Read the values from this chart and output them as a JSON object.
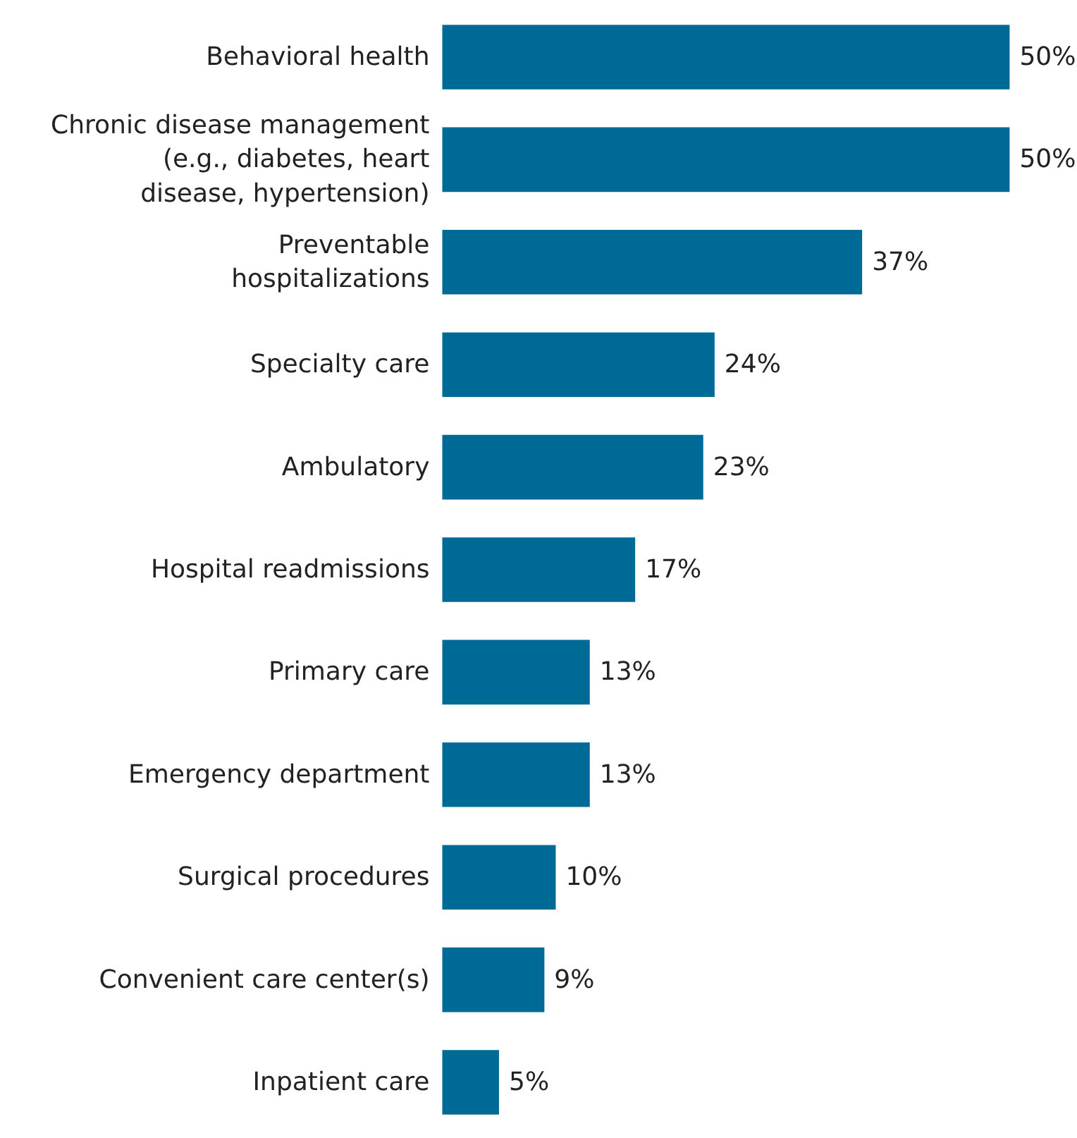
{
  "chart_data": {
    "type": "bar",
    "orientation": "horizontal",
    "categories": [
      "Behavioral health",
      "Chronic disease management (e.g., diabetes, heart disease, hypertension)",
      "Preventable hospitalizations",
      "Specialty care",
      "Ambulatory",
      "Hospital readmissions",
      "Primary care",
      "Emergency department",
      "Surgical procedures",
      "Convenient care center(s)",
      "Inpatient care"
    ],
    "values": [
      50,
      50,
      37,
      24,
      23,
      17,
      13,
      13,
      10,
      9,
      5
    ],
    "value_labels": [
      "50%",
      "50%",
      "37%",
      "24%",
      "23%",
      "17%",
      "13%",
      "13%",
      "10%",
      "9%",
      "5%"
    ],
    "color": "#006a96"
  }
}
